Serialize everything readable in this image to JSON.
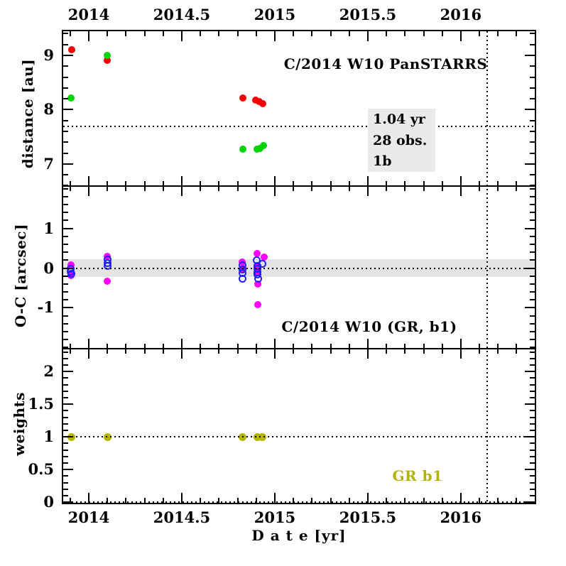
{
  "chart_data": {
    "type": "scatter",
    "x_axis": {
      "label": "D a t e [yr]",
      "lim": [
        2013.855,
        2016.405
      ],
      "major_ticks": [
        2014,
        2014.5,
        2015,
        2015.5,
        2016
      ],
      "major_tick_labels": [
        "2014",
        "2014.5",
        "2015",
        "2015.5",
        "2016"
      ],
      "minor_step": 0.1,
      "vline": 2016.14,
      "labels_shown_top_and_bottom": true
    },
    "panels": [
      {
        "id": "distance",
        "ylabel": "distance [au]",
        "ylim": [
          6.58,
          9.47
        ],
        "major_ticks": [
          7,
          8,
          9
        ],
        "major_tick_labels": [
          "7",
          "8",
          "9"
        ],
        "minor_step": 0.2,
        "hlines": [
          7.69
        ],
        "annotation": {
          "text": "C/2014 W10 PanSTARRS",
          "color": "#000000"
        },
        "info_box": {
          "lines": [
            "1.04 yr",
            "28 obs.",
            "1b"
          ],
          "bg": "#eaeaea"
        },
        "series": [
          {
            "name": "distance-red",
            "color": "#f40000",
            "marker": "filled-circle",
            "size": 10,
            "points": [
              [
                2013.91,
                9.1
              ],
              [
                2014.1,
                8.91
              ],
              [
                2014.828,
                8.22
              ],
              [
                2014.899,
                8.17
              ],
              [
                2014.918,
                8.15
              ],
              [
                2014.934,
                8.11
              ]
            ]
          },
          {
            "name": "distance-green",
            "color": "#00d400",
            "marker": "filled-circle",
            "size": 10,
            "points": [
              [
                2013.905,
                8.21
              ],
              [
                2014.1,
                9.0
              ],
              [
                2014.828,
                7.27
              ],
              [
                2014.904,
                7.27
              ],
              [
                2014.92,
                7.29
              ],
              [
                2014.938,
                7.34
              ]
            ]
          }
        ]
      },
      {
        "id": "o-c-residuals",
        "ylabel": "O-C [arcsec]",
        "ylim": [
          -2.05,
          2.05
        ],
        "major_ticks": [
          -1,
          0,
          1
        ],
        "major_tick_labels": [
          "-1",
          "0",
          "1"
        ],
        "minor_step": 0.2,
        "hlines": [
          0
        ],
        "band": {
          "from": -0.23,
          "to": 0.23,
          "color": "#e4e4e4"
        },
        "annotation": {
          "text": "C/2014 W10 (GR, b1)",
          "color": "#000000"
        },
        "series": [
          {
            "name": "residual-magenta",
            "color": "#ff00ff",
            "marker": "filled-circle",
            "size": 10,
            "points": [
              [
                2013.905,
                0.08
              ],
              [
                2013.905,
                -0.18
              ],
              [
                2014.1,
                0.29
              ],
              [
                2014.1,
                -0.34
              ],
              [
                2014.826,
                0.15
              ],
              [
                2014.828,
                0.0
              ],
              [
                2014.903,
                0.37
              ],
              [
                2014.944,
                0.27
              ],
              [
                2014.906,
                0.02
              ],
              [
                2014.91,
                -0.08
              ],
              [
                2014.907,
                -0.4
              ],
              [
                2014.907,
                -0.92
              ]
            ]
          },
          {
            "name": "residual-blue",
            "color": "#2020ff",
            "marker": "open-circle",
            "size": 11,
            "points": [
              [
                2013.904,
                -0.02
              ],
              [
                2013.904,
                -0.09
              ],
              [
                2013.905,
                -0.15
              ],
              [
                2014.1,
                0.21
              ],
              [
                2014.1,
                0.13
              ],
              [
                2014.1,
                0.06
              ],
              [
                2014.827,
                0.08
              ],
              [
                2014.827,
                -0.03
              ],
              [
                2014.827,
                -0.12
              ],
              [
                2014.827,
                -0.27
              ],
              [
                2014.904,
                0.19
              ],
              [
                2014.935,
                0.1
              ],
              [
                2014.905,
                0.06
              ],
              [
                2014.906,
                -0.02
              ],
              [
                2014.908,
                -0.1
              ],
              [
                2014.905,
                -0.17
              ],
              [
                2014.909,
                -0.27
              ]
            ]
          }
        ]
      },
      {
        "id": "weights",
        "ylabel": "weights",
        "ylim": [
          -0.03,
          2.34
        ],
        "major_ticks": [
          0,
          0.5,
          1,
          1.5,
          2
        ],
        "major_tick_labels": [
          "0",
          "0.5",
          "1",
          "1.5",
          "2"
        ],
        "minor_step": 0.1,
        "hlines": [
          0,
          1
        ],
        "annotation": {
          "text": "GR b1",
          "color": "#b4b400"
        },
        "series": [
          {
            "name": "weights-olive",
            "color": "#b4b400",
            "marker": "filled-circle",
            "size": 11,
            "points": [
              [
                2013.906,
                1
              ],
              [
                2014.1,
                1
              ],
              [
                2014.828,
                1
              ],
              [
                2014.905,
                1
              ],
              [
                2014.935,
                1
              ]
            ]
          }
        ]
      }
    ]
  }
}
